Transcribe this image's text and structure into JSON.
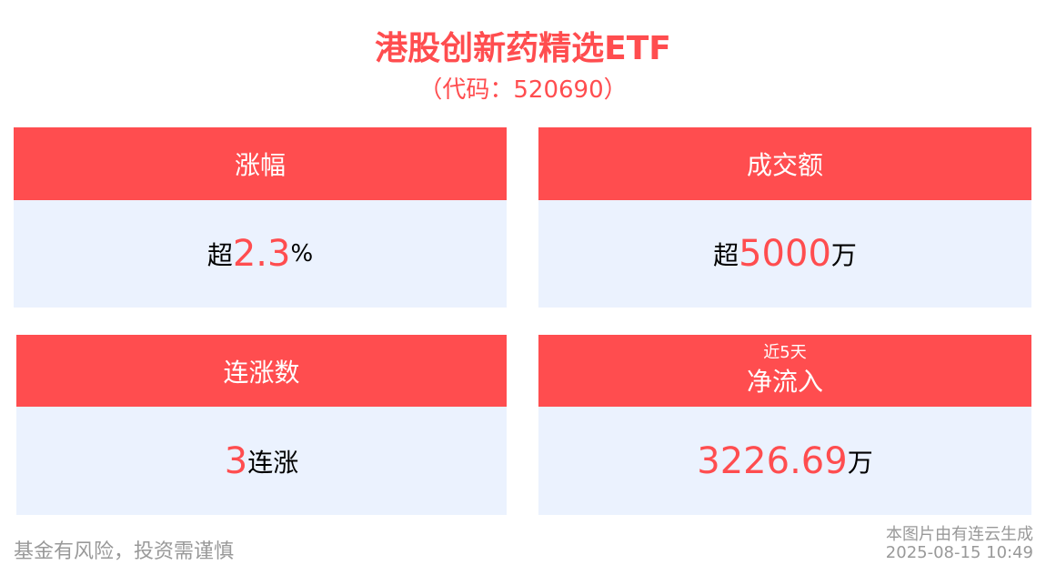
{
  "header": {
    "title": "港股创新药精选ETF",
    "code": "（代码：520690）"
  },
  "cards": [
    {
      "label": "涨幅",
      "prefix": "超",
      "value": "2.3",
      "suffix": "%"
    },
    {
      "label": "成交额",
      "prefix": "超",
      "value": "5000",
      "suffix": "万"
    },
    {
      "label": "连涨数",
      "prefix": "",
      "value": "3",
      "suffix": "连涨"
    },
    {
      "sublabel": "近5天",
      "label": "净流入",
      "prefix": "",
      "value": "3226.69",
      "suffix": "万"
    }
  ],
  "footer": {
    "risk": "基金有风险，投资需谨慎",
    "generated_by": "本图片由有连云生成",
    "timestamp": "2025-08-15 10:49"
  },
  "colors": {
    "accent": "#ff4d4f",
    "card_bg": "#ebf2fe"
  }
}
